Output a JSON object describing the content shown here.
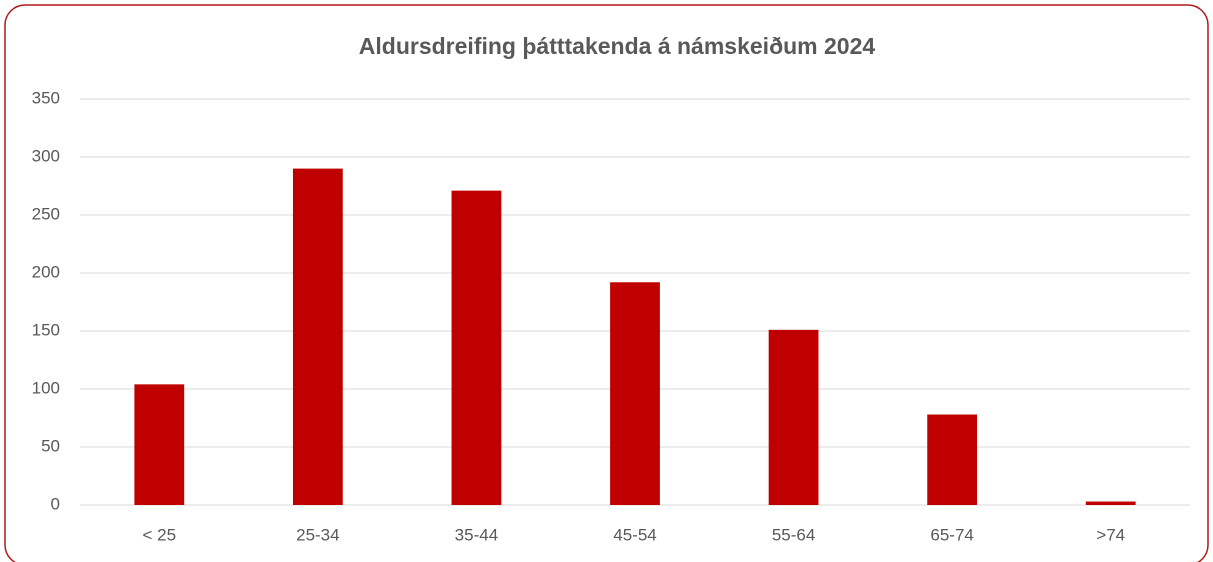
{
  "chart_data": {
    "type": "bar",
    "title": "Aldursdreifing þátttakenda á námskeiðum 2024",
    "categories": [
      "< 25",
      "25-34",
      "35-44",
      "45-54",
      "55-64",
      "65-74",
      ">74"
    ],
    "values": [
      104,
      290,
      271,
      192,
      151,
      78,
      3
    ],
    "color": "#c00000",
    "ylim": [
      0,
      350
    ],
    "yticks": [
      0,
      50,
      100,
      150,
      200,
      250,
      300,
      350
    ],
    "grid": true
  }
}
